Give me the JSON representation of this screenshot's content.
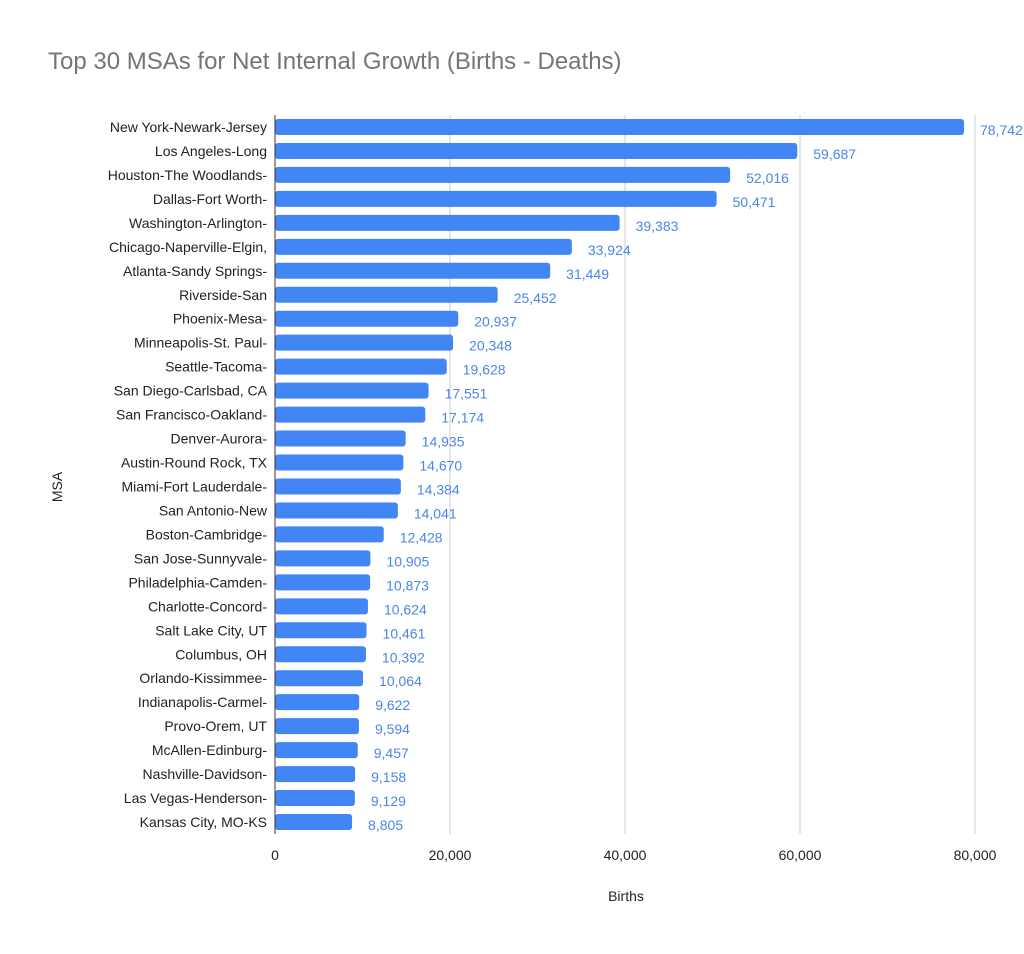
{
  "chart_data": {
    "type": "bar",
    "orientation": "horizontal",
    "title": "Top 30 MSAs for Net Internal Growth (Births - Deaths)",
    "xlabel": "Births",
    "ylabel": "MSA",
    "xlim": [
      0,
      80000
    ],
    "xticks": [
      0,
      20000,
      40000,
      60000,
      80000
    ],
    "xtick_labels": [
      "0",
      "20,000",
      "40,000",
      "60,000",
      "80,000"
    ],
    "grid": true,
    "bar_color": "#4285f4",
    "label_color": "#4a86e8",
    "categories": [
      "New York-Newark-Jersey",
      "Los Angeles-Long",
      "Houston-The Woodlands-",
      "Dallas-Fort Worth-",
      "Washington-Arlington-",
      "Chicago-Naperville-Elgin,",
      "Atlanta-Sandy Springs-",
      "Riverside-San",
      "Phoenix-Mesa-",
      "Minneapolis-St. Paul-",
      "Seattle-Tacoma-",
      "San Diego-Carlsbad, CA",
      "San Francisco-Oakland-",
      "Denver-Aurora-",
      "Austin-Round Rock, TX",
      "Miami-Fort Lauderdale-",
      "San Antonio-New",
      "Boston-Cambridge-",
      "San Jose-Sunnyvale-",
      "Philadelphia-Camden-",
      "Charlotte-Concord-",
      "Salt Lake City, UT",
      "Columbus, OH",
      "Orlando-Kissimmee-",
      "Indianapolis-Carmel-",
      "Provo-Orem, UT",
      "McAllen-Edinburg-",
      "Nashville-Davidson-",
      "Las Vegas-Henderson-",
      "Kansas City, MO-KS"
    ],
    "values": [
      78742,
      59687,
      52016,
      50471,
      39383,
      33924,
      31449,
      25452,
      20937,
      20348,
      19628,
      17551,
      17174,
      14935,
      14670,
      14384,
      14041,
      12428,
      10905,
      10873,
      10624,
      10461,
      10392,
      10064,
      9622,
      9594,
      9457,
      9158,
      9129,
      8805
    ],
    "value_labels": [
      "78,742",
      "59,687",
      "52,016",
      "50,471",
      "39,383",
      "33,924",
      "31,449",
      "25,452",
      "20,937",
      "20,348",
      "19,628",
      "17,551",
      "17,174",
      "14,935",
      "14,670",
      "14,384",
      "14,041",
      "12,428",
      "10,905",
      "10,873",
      "10,624",
      "10,461",
      "10,392",
      "10,064",
      "9,622",
      "9,594",
      "9,457",
      "9,158",
      "9,129",
      "8,805"
    ]
  }
}
